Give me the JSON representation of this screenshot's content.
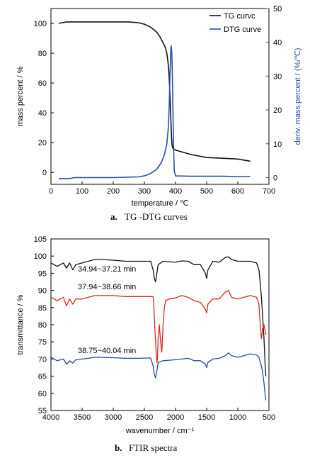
{
  "chart_data": [
    {
      "type": "line",
      "caption_label": "a.",
      "caption_text": "TG -DTG curves",
      "xlabel": "temperature / ℃",
      "ylabel": "mass percent / %",
      "y2label": "deriv. mass percent / (%/℃)",
      "xlim": [
        0,
        700
      ],
      "ylim": [
        -8,
        110
      ],
      "y2lim": [
        -2,
        50
      ],
      "xticks": [
        0,
        100,
        200,
        300,
        400,
        500,
        600,
        700
      ],
      "yticks": [
        0,
        20,
        40,
        60,
        80,
        100
      ],
      "y2ticks": [
        0,
        10,
        20,
        30,
        40,
        50
      ],
      "grid": false,
      "legend_position": "top-right",
      "series": [
        {
          "name": "TG curvc",
          "axis": "left",
          "color": "#111111",
          "x": [
            25,
            50,
            100,
            150,
            200,
            250,
            280,
            300,
            320,
            340,
            350,
            360,
            367,
            372,
            376,
            379,
            381,
            383,
            385,
            387,
            389,
            392,
            400,
            450,
            500,
            550,
            600,
            640
          ],
          "y": [
            100,
            101,
            101,
            101,
            101,
            101,
            100.5,
            99.5,
            97.5,
            94,
            91,
            87,
            84,
            80,
            74,
            66,
            58,
            48,
            35,
            24,
            18,
            16,
            15,
            12,
            10,
            9.5,
            9,
            7.5
          ]
        },
        {
          "name": "DTG curve",
          "axis": "right",
          "color": "#2b4ea2",
          "x": [
            25,
            60,
            75,
            100,
            200,
            280,
            300,
            320,
            340,
            355,
            365,
            372,
            377,
            380,
            382,
            384,
            386,
            388,
            390,
            392,
            394,
            396,
            400,
            450,
            500,
            550,
            600,
            640
          ],
          "y": [
            -0.3,
            -0.3,
            0,
            0,
            0,
            0.2,
            0.5,
            1.2,
            2.5,
            4.5,
            7,
            10,
            15,
            22,
            30,
            36,
            39,
            37,
            30,
            18,
            8,
            2,
            0.5,
            0.4,
            0.4,
            0.4,
            0.3,
            0.3
          ]
        }
      ]
    },
    {
      "type": "line",
      "caption_label": "b.",
      "caption_text": "FTIR spectra",
      "xlabel": "wavenumber / cm⁻¹",
      "ylabel": "transmittance / %",
      "xlim": [
        4000,
        500
      ],
      "ylim": [
        55,
        105
      ],
      "xticks": [
        4000,
        3500,
        3000,
        2500,
        2000,
        1500,
        1000,
        500
      ],
      "yticks": [
        55,
        60,
        65,
        70,
        75,
        80,
        85,
        90,
        95,
        100,
        105
      ],
      "grid": false,
      "annotations": [
        "34.94~37.21 min",
        "37.94~38.66 min",
        "38.75~40.04 min"
      ],
      "series": [
        {
          "color": "#111111",
          "x": [
            4000,
            3900,
            3800,
            3750,
            3700,
            3650,
            3600,
            3500,
            3400,
            3300,
            3200,
            3000,
            2800,
            2600,
            2400,
            2360,
            2340,
            2320,
            2300,
            2280,
            2200,
            2000,
            1900,
            1800,
            1700,
            1600,
            1520,
            1500,
            1480,
            1400,
            1300,
            1200,
            1150,
            1100,
            1000,
            900,
            800,
            700,
            660,
            640,
            620,
            600,
            580,
            560,
            550
          ],
          "y": [
            98,
            97,
            98,
            96.5,
            98,
            96,
            97.5,
            98,
            98.5,
            99,
            99,
            98.8,
            98.5,
            98.5,
            98.5,
            96,
            93.5,
            92.5,
            95,
            97.5,
            98.5,
            98.2,
            98.6,
            98.5,
            97.5,
            97.5,
            95,
            93.5,
            96,
            98.5,
            98.2,
            99.6,
            99.8,
            99,
            98.5,
            98.5,
            98.5,
            98,
            96,
            92,
            88,
            82,
            76,
            68,
            65
          ]
        },
        {
          "color": "#d8281f",
          "x": [
            4000,
            3900,
            3800,
            3750,
            3700,
            3650,
            3600,
            3500,
            3400,
            3300,
            3200,
            3000,
            2800,
            2600,
            2400,
            2360,
            2350,
            2340,
            2320,
            2300,
            2290,
            2280,
            2260,
            2240,
            2220,
            2200,
            2180,
            2160,
            2100,
            2000,
            1900,
            1800,
            1700,
            1600,
            1520,
            1500,
            1480,
            1400,
            1300,
            1200,
            1150,
            1100,
            1000,
            900,
            800,
            700,
            660,
            640,
            620,
            600,
            580,
            560,
            550
          ],
          "y": [
            88,
            87,
            88,
            85.5,
            87.5,
            86,
            87.5,
            87.5,
            88,
            88.5,
            88.5,
            88.5,
            88.2,
            88.2,
            88.2,
            88.2,
            86,
            82,
            75,
            69,
            70,
            76,
            80,
            75,
            72,
            80,
            85,
            87,
            87.5,
            87.8,
            88.5,
            88,
            87,
            86.5,
            84.5,
            83.5,
            86,
            87.5,
            87.5,
            89.5,
            90,
            88,
            87.5,
            88,
            88.5,
            88,
            86,
            80,
            76,
            79,
            80,
            78,
            77
          ]
        },
        {
          "color": "#2b4a8f",
          "x": [
            4000,
            3900,
            3800,
            3750,
            3700,
            3650,
            3600,
            3500,
            3400,
            3300,
            3200,
            3000,
            2800,
            2600,
            2400,
            2360,
            2340,
            2320,
            2300,
            2280,
            2200,
            2000,
            1900,
            1800,
            1700,
            1600,
            1520,
            1500,
            1480,
            1400,
            1300,
            1200,
            1150,
            1100,
            1000,
            900,
            800,
            700,
            660,
            640,
            620,
            600,
            580,
            560,
            550
          ],
          "y": [
            70.5,
            69.5,
            70,
            68.5,
            69.5,
            68.8,
            69.8,
            70,
            70.2,
            70.5,
            70.5,
            70.4,
            70.2,
            70.2,
            70.3,
            68,
            65.5,
            64.5,
            66.5,
            69,
            69.5,
            69.8,
            70,
            70.2,
            69.5,
            69.5,
            68.5,
            67.5,
            69,
            70,
            70.2,
            71,
            71.8,
            71,
            70.5,
            71,
            71.5,
            71.2,
            70.5,
            69,
            68,
            66,
            63,
            59.5,
            58
          ]
        }
      ]
    }
  ]
}
